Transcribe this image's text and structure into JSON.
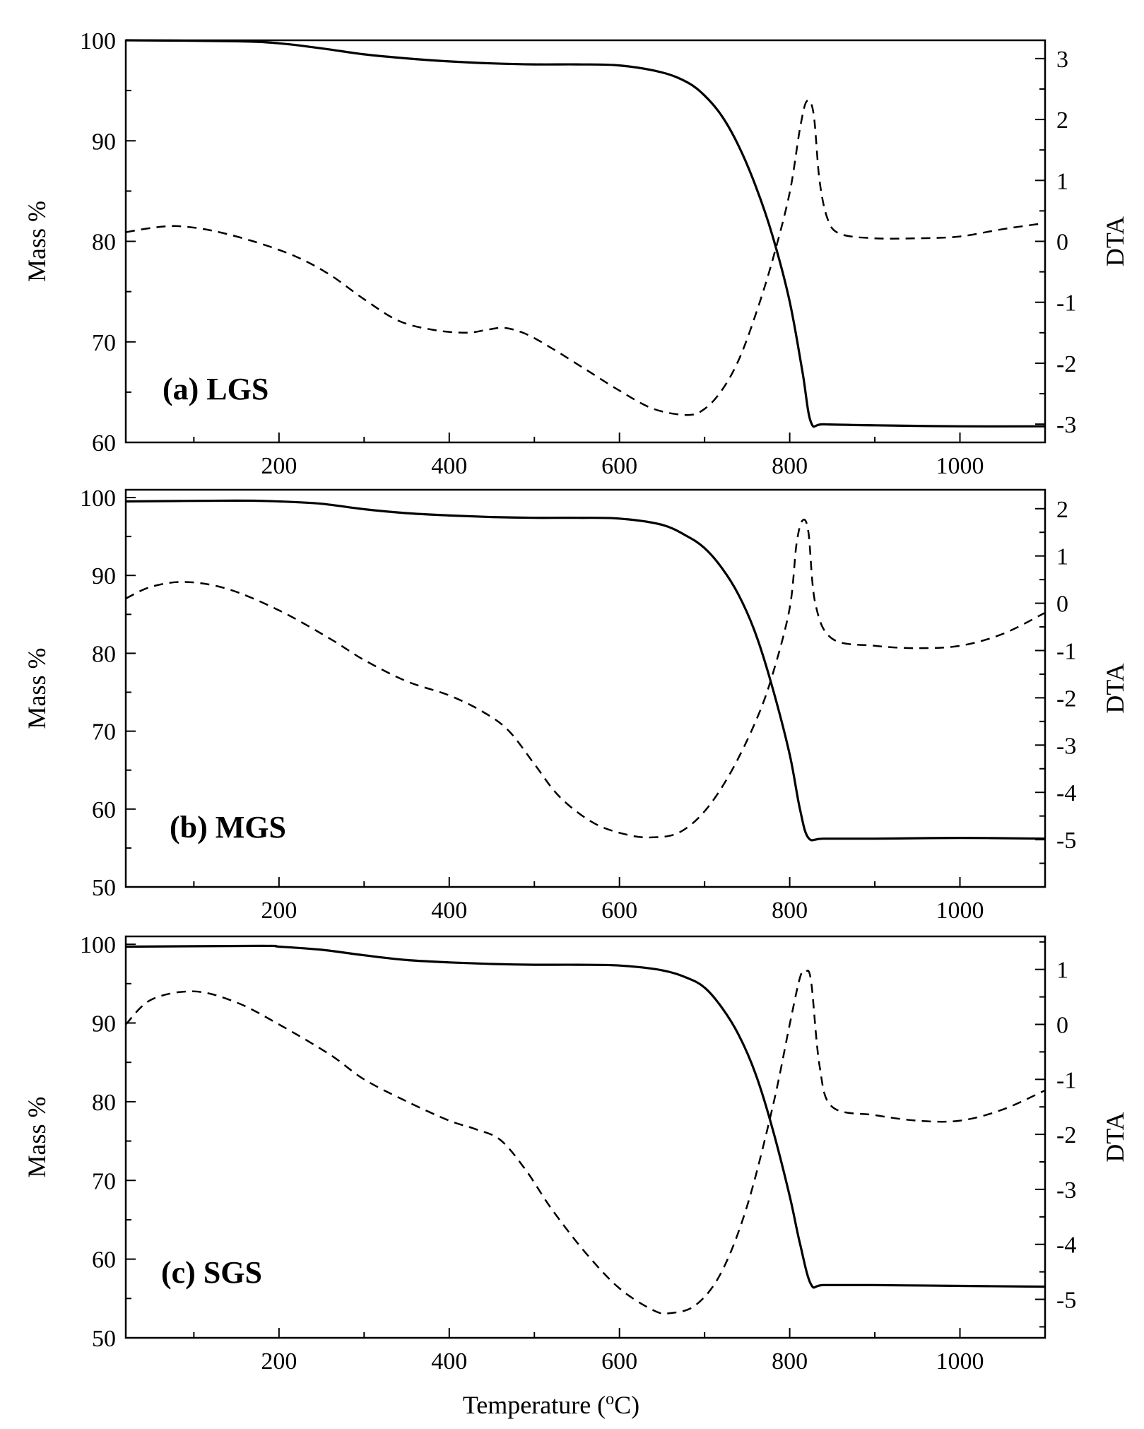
{
  "figure": {
    "xlabel": "Temperature (°C)",
    "xlabel_main": "Temperature (",
    "xlabel_sup": "o",
    "xlabel_end": "C)"
  },
  "colors": {
    "line": "#000000",
    "background": "#ffffff"
  },
  "chart_data": [
    {
      "type": "line",
      "title": "(a) LGS",
      "xlabel": "Temperature (°C)",
      "ylabel": "Mass %",
      "y2label": "DTA",
      "xlim": [
        20,
        1100
      ],
      "ylim": [
        60,
        100
      ],
      "y2lim": [
        -3.3,
        3.3
      ],
      "xticks": [
        200,
        400,
        600,
        800,
        1000
      ],
      "yticks": [
        60,
        70,
        80,
        90,
        100
      ],
      "y2ticks": [
        -3,
        -2,
        -1,
        0,
        1,
        2,
        3
      ],
      "series": [
        {
          "name": "Mass %",
          "axis": "left",
          "style": "solid",
          "x": [
            20,
            150,
            200,
            250,
            300,
            350,
            400,
            450,
            500,
            550,
            600,
            650,
            680,
            700,
            720,
            740,
            760,
            780,
            800,
            815,
            825,
            840,
            900,
            1000,
            1100
          ],
          "y": [
            100,
            99.9,
            99.7,
            99.2,
            98.6,
            98.2,
            97.9,
            97.7,
            97.6,
            97.6,
            97.5,
            96.8,
            95.8,
            94.5,
            92.5,
            89.5,
            85.5,
            80.5,
            74.0,
            67.0,
            62.0,
            61.8,
            61.7,
            61.6,
            61.6
          ]
        },
        {
          "name": "DTA",
          "axis": "right",
          "style": "dashed",
          "x": [
            20,
            50,
            80,
            120,
            170,
            220,
            260,
            300,
            340,
            380,
            420,
            445,
            465,
            490,
            520,
            560,
            600,
            640,
            680,
            700,
            720,
            740,
            760,
            780,
            800,
            812,
            820,
            828,
            835,
            845,
            860,
            900,
            950,
            1000,
            1050,
            1100
          ],
          "y": [
            0.15,
            0.22,
            0.25,
            0.18,
            0.0,
            -0.25,
            -0.55,
            -0.95,
            -1.3,
            -1.45,
            -1.5,
            -1.45,
            -1.42,
            -1.52,
            -1.75,
            -2.1,
            -2.45,
            -2.75,
            -2.85,
            -2.75,
            -2.45,
            -1.95,
            -1.2,
            -0.3,
            0.8,
            1.85,
            2.3,
            2.1,
            1.0,
            0.35,
            0.12,
            0.05,
            0.05,
            0.08,
            0.2,
            0.3
          ]
        }
      ]
    },
    {
      "type": "line",
      "title": "(b) MGS",
      "xlabel": "Temperature (°C)",
      "ylabel": "Mass %",
      "y2label": "DTA",
      "xlim": [
        20,
        1100
      ],
      "ylim": [
        50,
        101
      ],
      "y2lim": [
        -6.0,
        2.4
      ],
      "xticks": [
        200,
        400,
        600,
        800,
        1000
      ],
      "yticks": [
        50,
        60,
        70,
        80,
        90,
        100
      ],
      "y2ticks": [
        -5,
        -4,
        -3,
        -2,
        -1,
        0,
        1,
        2
      ],
      "series": [
        {
          "name": "Mass %",
          "axis": "left",
          "style": "solid",
          "x": [
            20,
            150,
            200,
            250,
            300,
            350,
            400,
            450,
            500,
            550,
            600,
            650,
            680,
            700,
            720,
            740,
            760,
            780,
            800,
            812,
            822,
            840,
            900,
            1000,
            1100
          ],
          "y": [
            99.5,
            99.6,
            99.5,
            99.2,
            98.5,
            98.0,
            97.7,
            97.5,
            97.4,
            97.4,
            97.3,
            96.5,
            95.0,
            93.5,
            91.0,
            87.5,
            82.5,
            75.5,
            67.0,
            60.0,
            56.3,
            56.2,
            56.2,
            56.3,
            56.2
          ]
        },
        {
          "name": "DTA",
          "axis": "right",
          "style": "dashed",
          "x": [
            20,
            50,
            90,
            140,
            200,
            260,
            300,
            350,
            400,
            440,
            470,
            500,
            530,
            570,
            610,
            640,
            670,
            700,
            730,
            760,
            780,
            800,
            808,
            815,
            822,
            830,
            850,
            900,
            950,
            1000,
            1050,
            1100
          ],
          "y": [
            0.1,
            0.35,
            0.45,
            0.3,
            -0.15,
            -0.75,
            -1.2,
            -1.65,
            -1.95,
            -2.3,
            -2.7,
            -3.4,
            -4.1,
            -4.65,
            -4.9,
            -4.95,
            -4.85,
            -4.4,
            -3.6,
            -2.5,
            -1.5,
            -0.1,
            1.25,
            1.75,
            1.5,
            0.0,
            -0.75,
            -0.9,
            -0.95,
            -0.9,
            -0.65,
            -0.2
          ]
        }
      ]
    },
    {
      "type": "line",
      "title": "(c) SGS",
      "xlabel": "Temperature (°C)",
      "ylabel": "Mass %",
      "y2label": "DTA",
      "xlim": [
        20,
        1100
      ],
      "ylim": [
        50,
        101
      ],
      "y2lim": [
        -5.7,
        1.6
      ],
      "xticks": [
        200,
        400,
        600,
        800,
        1000
      ],
      "yticks": [
        50,
        60,
        70,
        80,
        90,
        100
      ],
      "y2ticks": [
        -5,
        -4,
        -3,
        -2,
        -1,
        0,
        1
      ],
      "series": [
        {
          "name": "Mass %",
          "axis": "left",
          "style": "solid",
          "x": [
            20,
            180,
            200,
            250,
            300,
            350,
            400,
            450,
            500,
            550,
            600,
            650,
            680,
            700,
            720,
            740,
            760,
            780,
            800,
            812,
            825,
            840,
            900,
            1000,
            1100
          ],
          "y": [
            99.7,
            99.8,
            99.7,
            99.3,
            98.6,
            98.0,
            97.7,
            97.5,
            97.4,
            97.4,
            97.3,
            96.7,
            95.7,
            94.5,
            92.0,
            88.5,
            83.5,
            76.5,
            68.0,
            62.0,
            56.8,
            56.7,
            56.7,
            56.6,
            56.5
          ]
        },
        {
          "name": "DTA",
          "axis": "right",
          "style": "dashed",
          "x": [
            20,
            50,
            100,
            150,
            200,
            260,
            300,
            350,
            400,
            430,
            460,
            490,
            520,
            560,
            600,
            640,
            660,
            690,
            720,
            750,
            780,
            800,
            812,
            818,
            825,
            835,
            850,
            900,
            950,
            1000,
            1050,
            1100
          ],
          "y": [
            0.0,
            0.45,
            0.6,
            0.4,
            0.0,
            -0.55,
            -1.0,
            -1.4,
            -1.75,
            -1.9,
            -2.1,
            -2.65,
            -3.35,
            -4.15,
            -4.8,
            -5.2,
            -5.25,
            -5.1,
            -4.5,
            -3.3,
            -1.5,
            0.0,
            0.85,
            0.95,
            0.8,
            -0.75,
            -1.5,
            -1.65,
            -1.75,
            -1.75,
            -1.55,
            -1.2
          ]
        }
      ]
    }
  ]
}
